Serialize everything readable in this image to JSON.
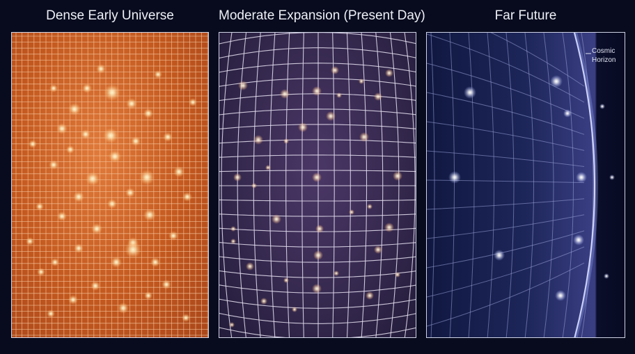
{
  "panels": [
    {
      "title": "Dense Early Universe",
      "grid_color": "#f5c8a0",
      "accent": "#c4591f"
    },
    {
      "title": "Moderate Expansion (Present Day)",
      "grid_color": "#e8e2f2",
      "accent": "#34284d"
    },
    {
      "title": "Far Future",
      "grid_color": "#9aa3d8",
      "accent": "#1d2659"
    }
  ],
  "horizon_label": "Cosmic\nHorizon",
  "icons": [
    "galaxy-glow",
    "grid-line",
    "horizon-curve"
  ]
}
